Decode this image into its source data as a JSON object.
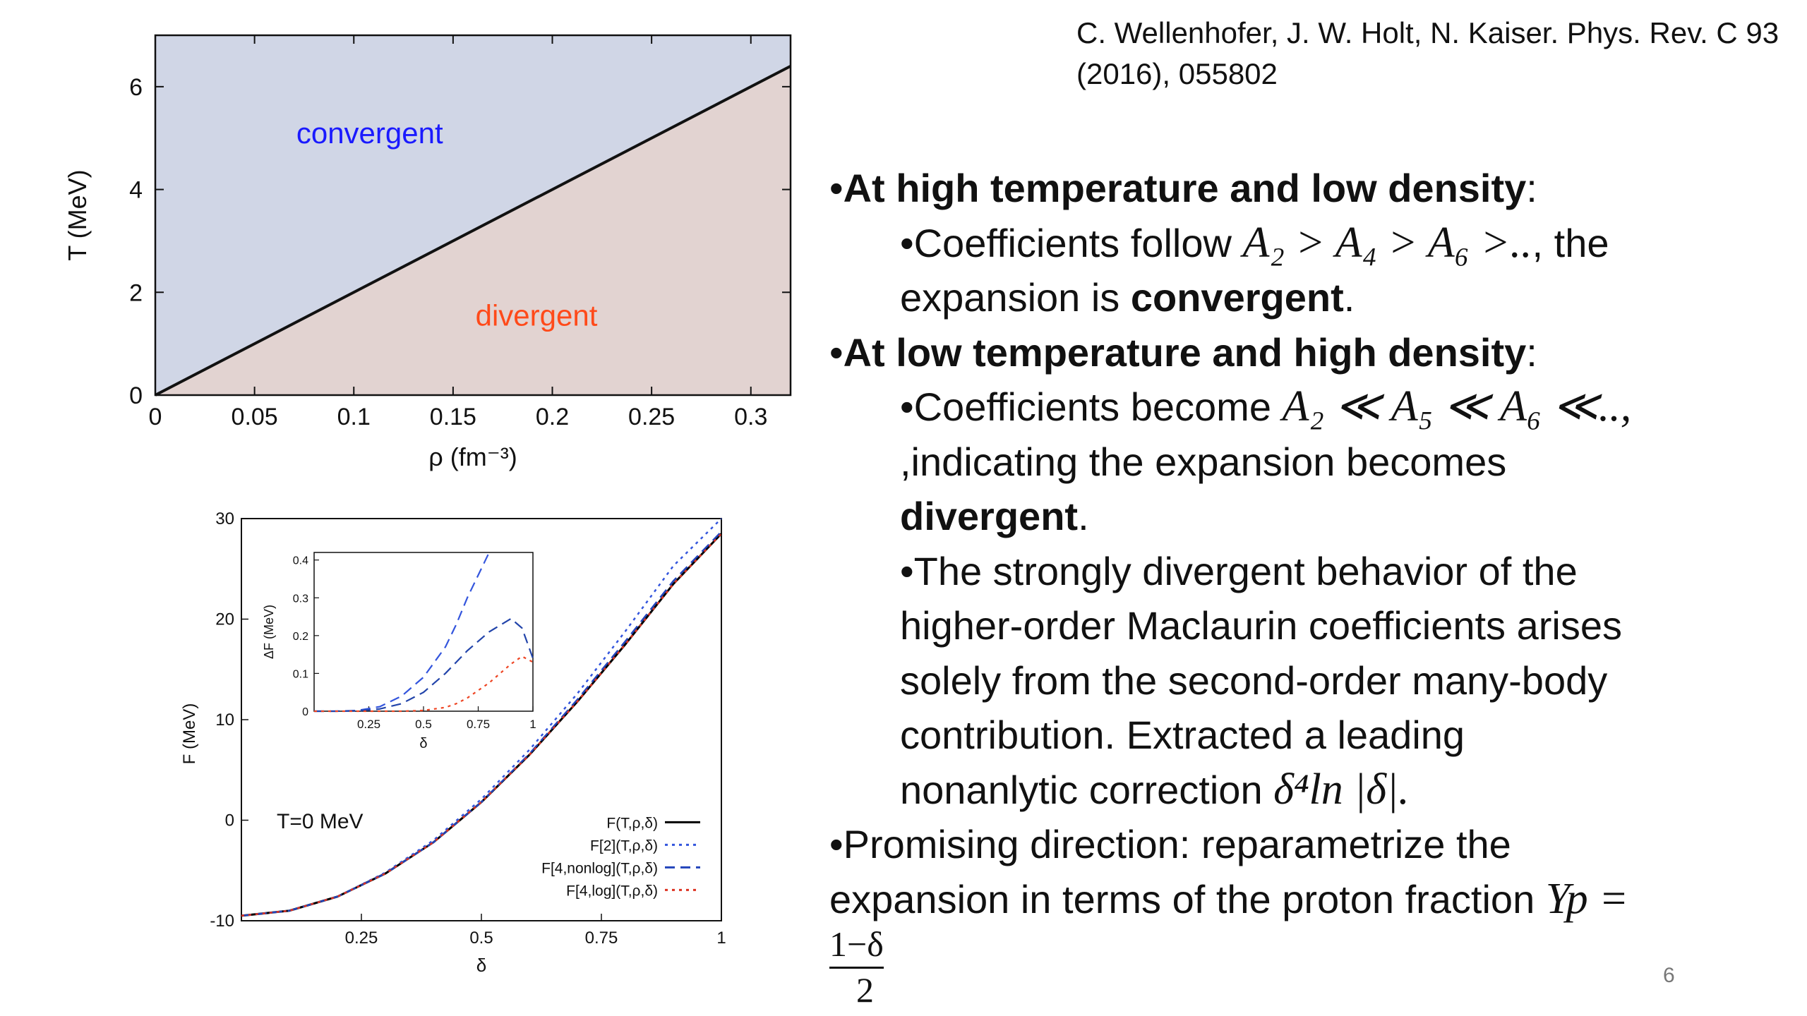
{
  "citation": "C. Wellenhofer, J. W. Holt, N. Kaiser. Phys. Rev. C 93 (2016), 055802",
  "page_number": "6",
  "bullets": {
    "b1_bold": "At high temperature and low density",
    "b1_colon": ":",
    "b1_sub_prefix": "Coefficients follow ",
    "b1_sub_math": "A₂ > A₄ > A₆ >..",
    "b1_sub_suffix": ", the",
    "b1_sub_line2": "expansion is ",
    "b1_sub_bold": "convergent",
    "period": ".",
    "b2_bold": "At low temperature and high density",
    "b2_colon": ":",
    "b2_sub_prefix": "Coefficients become ",
    "b2_sub_math": "A₂ ≪ A₅ ≪ A₆ ≪..,",
    "b2_sub_line2": ",indicating the expansion becomes",
    "b2_sub_bold": "divergent",
    "b3_lines": [
      "The strongly divergent behavior of the",
      "higher-order Maclaurin coefficients arises",
      "solely from the second-order many-body",
      "contribution. Extracted a leading"
    ],
    "b3_last_prefix": "nonanlytic correction ",
    "b3_last_math": "δ⁴ln |δ|.",
    "b4_line1": "Promising direction: reparametrize the",
    "b4_line2": "expansion in terms of the proton fraction ",
    "b4_math": "Yp =",
    "frac_num": "1−δ",
    "frac_den": "2"
  },
  "chart_data": [
    {
      "type": "area",
      "xlabel": "ρ (fm⁻³)",
      "ylabel": "T (MeV)",
      "xlim": [
        0,
        0.32
      ],
      "ylim": [
        0,
        7
      ],
      "xticks": [
        "0",
        "0.05",
        "0.1",
        "0.15",
        "0.2",
        "0.25",
        "0.3"
      ],
      "yticks": [
        "0",
        "2",
        "4",
        "6"
      ],
      "boundary": {
        "x": [
          0,
          0.32
        ],
        "y": [
          0,
          6.4
        ]
      },
      "regions": [
        {
          "label": "convergent",
          "color": "#d0d6e6",
          "label_color": "#1a1aff"
        },
        {
          "label": "divergent",
          "color": "#e2d3d1",
          "label_color": "#ff4a1a"
        }
      ]
    },
    {
      "type": "line",
      "xlabel": "δ",
      "ylabel": "F (MeV)",
      "xlim": [
        0,
        1
      ],
      "ylim": [
        -10,
        30
      ],
      "xticks": [
        "0.25",
        "0.5",
        "0.75",
        "1"
      ],
      "yticks": [
        "-10",
        "0",
        "10",
        "20",
        "30"
      ],
      "annotation": "T=0 MeV",
      "legend_position": "bottom-right",
      "x": [
        0,
        0.1,
        0.2,
        0.3,
        0.4,
        0.5,
        0.6,
        0.7,
        0.8,
        0.9,
        1.0
      ],
      "series": [
        {
          "name": "F(T,ρ,δ)",
          "color": "#000000",
          "dash": "solid",
          "values": [
            -9.5,
            -9.0,
            -7.6,
            -5.3,
            -2.2,
            1.8,
            6.5,
            11.8,
            17.5,
            23.5,
            28.5
          ]
        },
        {
          "name": "F[2](T,ρ,δ)",
          "color": "#3355dd",
          "dash": "dot",
          "values": [
            -9.5,
            -9.0,
            -7.6,
            -5.2,
            -2.0,
            2.1,
            7.0,
            12.6,
            18.8,
            25.3,
            30.0
          ]
        },
        {
          "name": "F[4,nonlog](T,ρ,δ)",
          "color": "#2244bb",
          "dash": "dash",
          "values": [
            -9.5,
            -9.0,
            -7.6,
            -5.3,
            -2.2,
            1.8,
            6.6,
            12.0,
            17.8,
            23.8,
            28.7
          ]
        },
        {
          "name": "F[4,log](T,ρ,δ)",
          "color": "#dd3322",
          "dash": "dot",
          "values": [
            -9.5,
            -9.0,
            -7.6,
            -5.3,
            -2.2,
            1.8,
            6.5,
            11.8,
            17.5,
            23.5,
            28.5
          ]
        }
      ],
      "inset": {
        "xlabel": "δ",
        "ylabel": "ΔF (MeV)",
        "xlim": [
          0,
          1
        ],
        "ylim": [
          0,
          0.42
        ],
        "xticks": [
          "0.25",
          "0.5",
          "0.75",
          "1"
        ],
        "yticks": [
          "0",
          "0.1",
          "0.2",
          "0.3",
          "0.4"
        ],
        "x": [
          0,
          0.1,
          0.2,
          0.3,
          0.4,
          0.5,
          0.6,
          0.65,
          0.7,
          0.8,
          0.9,
          0.95,
          1.0
        ],
        "series": [
          {
            "name": "F[2]",
            "color": "#3355dd",
            "dash": "dash",
            "values": [
              0,
              0.0,
              0.002,
              0.012,
              0.04,
              0.09,
              0.17,
              0.23,
              0.3,
              0.42,
              null,
              null,
              null
            ]
          },
          {
            "name": "F[4,nonlog]",
            "color": "#2244aa",
            "dash": "dash",
            "values": [
              0,
              0.0,
              0.001,
              0.006,
              0.02,
              0.05,
              0.1,
              0.13,
              0.16,
              0.21,
              0.245,
              0.22,
              0.14
            ]
          },
          {
            "name": "F[4,log]",
            "color": "#ee4422",
            "dash": "dot",
            "values": [
              0,
              0,
              0,
              0,
              0.0,
              0.002,
              0.01,
              0.02,
              0.035,
              0.075,
              0.125,
              0.145,
              0.13
            ]
          }
        ]
      }
    }
  ]
}
